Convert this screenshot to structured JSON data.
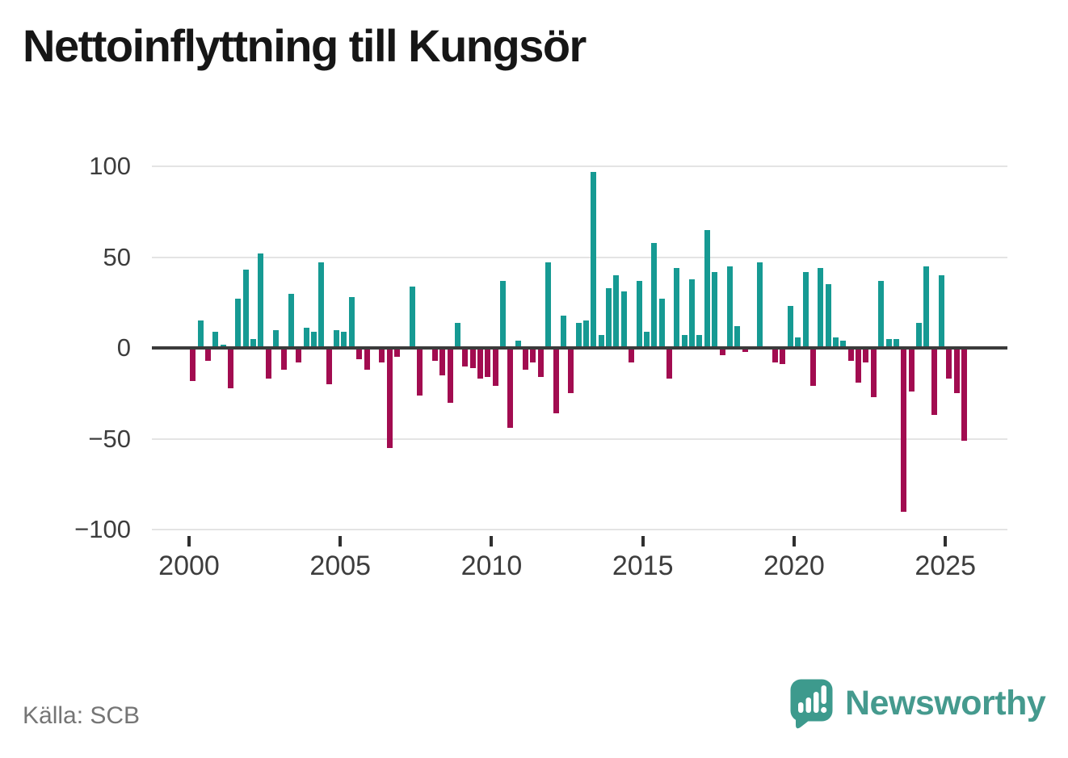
{
  "title": "Nettoinflyttning till Kungsör",
  "source": "Källa: SCB",
  "branding": {
    "name": "Newsworthy",
    "icon": "newsworthy-speech-bubble-bar-chart-icon",
    "color": "#459a8e",
    "icon_color": "#3d9a8d"
  },
  "colors": {
    "background": "#ffffff",
    "title_text": "#161616",
    "axis_text": "#3d3d3d",
    "source_text": "#757575",
    "grid": "#e4e4e4",
    "zero_line": "#3b3b3b"
  },
  "chart_data": {
    "type": "bar",
    "title": "Nettoinflyttning till Kungsör",
    "frequency": "quarterly",
    "x_start": "2000-Q1",
    "x_end": "2025-Q3",
    "ylim": [
      -100,
      100
    ],
    "grid": true,
    "legend": "none",
    "positive_color": "#169a93",
    "negative_color": "#a20c50",
    "yticks": [
      "100",
      "50",
      "0",
      "−50",
      "−100"
    ],
    "xticks": [
      "2000",
      "2005",
      "2010",
      "2015",
      "2020",
      "2025"
    ],
    "categories": [
      "2000-Q1",
      "2000-Q2",
      "2000-Q3",
      "2000-Q4",
      "2001-Q1",
      "2001-Q2",
      "2001-Q3",
      "2001-Q4",
      "2002-Q1",
      "2002-Q2",
      "2002-Q3",
      "2002-Q4",
      "2003-Q1",
      "2003-Q2",
      "2003-Q3",
      "2003-Q4",
      "2004-Q1",
      "2004-Q2",
      "2004-Q3",
      "2004-Q4",
      "2005-Q1",
      "2005-Q2",
      "2005-Q3",
      "2005-Q4",
      "2006-Q1",
      "2006-Q2",
      "2006-Q3",
      "2006-Q4",
      "2007-Q1",
      "2007-Q2",
      "2007-Q3",
      "2007-Q4",
      "2008-Q1",
      "2008-Q2",
      "2008-Q3",
      "2008-Q4",
      "2009-Q1",
      "2009-Q2",
      "2009-Q3",
      "2009-Q4",
      "2010-Q1",
      "2010-Q2",
      "2010-Q3",
      "2010-Q4",
      "2011-Q1",
      "2011-Q2",
      "2011-Q3",
      "2011-Q4",
      "2012-Q1",
      "2012-Q2",
      "2012-Q3",
      "2012-Q4",
      "2013-Q1",
      "2013-Q2",
      "2013-Q3",
      "2013-Q4",
      "2014-Q1",
      "2014-Q2",
      "2014-Q3",
      "2014-Q4",
      "2015-Q1",
      "2015-Q2",
      "2015-Q3",
      "2015-Q4",
      "2016-Q1",
      "2016-Q2",
      "2016-Q3",
      "2016-Q4",
      "2017-Q1",
      "2017-Q2",
      "2017-Q3",
      "2017-Q4",
      "2018-Q1",
      "2018-Q2",
      "2018-Q3",
      "2018-Q4",
      "2019-Q1",
      "2019-Q2",
      "2019-Q3",
      "2019-Q4",
      "2020-Q1",
      "2020-Q2",
      "2020-Q3",
      "2020-Q4",
      "2021-Q1",
      "2021-Q2",
      "2021-Q3",
      "2021-Q4",
      "2022-Q1",
      "2022-Q2",
      "2022-Q3",
      "2022-Q4",
      "2023-Q1",
      "2023-Q2",
      "2023-Q3",
      "2023-Q4",
      "2024-Q1",
      "2024-Q2",
      "2024-Q3",
      "2024-Q4",
      "2025-Q1",
      "2025-Q2",
      "2025-Q3"
    ],
    "values": [
      -18,
      15,
      -7,
      9,
      2,
      -22,
      27,
      43,
      5,
      52,
      -17,
      10,
      -12,
      30,
      -8,
      11,
      9,
      47,
      -20,
      10,
      9,
      28,
      -6,
      -12,
      0,
      -8,
      -55,
      -5,
      0,
      34,
      -26,
      0,
      -7,
      -15,
      -30,
      14,
      -10,
      -11,
      -17,
      -16,
      -21,
      37,
      -44,
      4,
      -12,
      -8,
      -16,
      47,
      -36,
      18,
      -25,
      14,
      15,
      97,
      7,
      33,
      40,
      31,
      -8,
      37,
      9,
      58,
      27,
      -17,
      44,
      7,
      38,
      7,
      65,
      42,
      -4,
      45,
      12,
      -2,
      -1,
      47,
      -1,
      -8,
      -9,
      23,
      6,
      42,
      -21,
      44,
      35,
      6,
      4,
      -7,
      -19,
      -8,
      -27,
      37,
      5,
      5,
      -90,
      -24,
      14,
      45,
      -37,
      40,
      -17,
      -25,
      -51
    ]
  }
}
